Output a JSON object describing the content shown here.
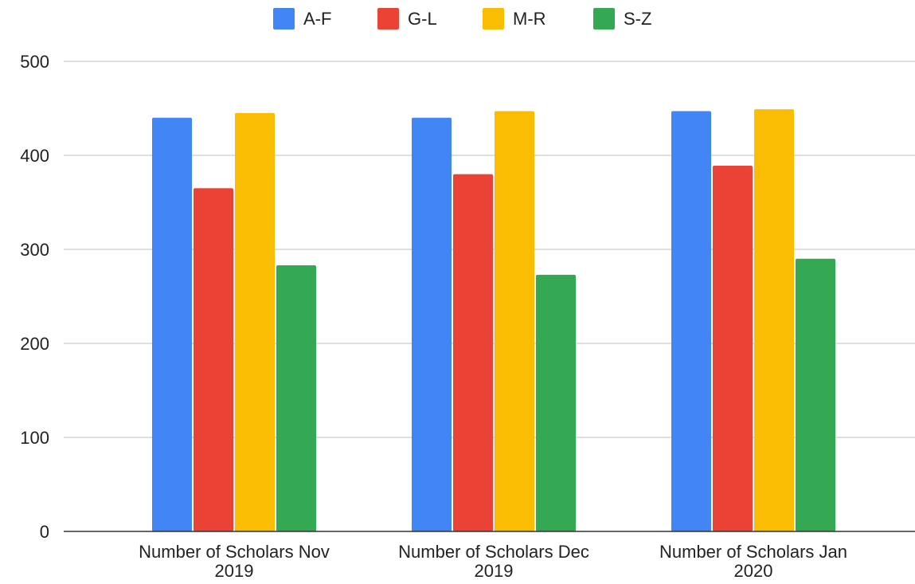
{
  "chart_data": {
    "type": "bar",
    "title": "",
    "xlabel": "",
    "ylabel": "",
    "categories": [
      [
        "Number of Scholars Nov",
        "2019"
      ],
      [
        "Number of Scholars Dec",
        "2019"
      ],
      [
        "Number of Scholars Jan",
        "2020"
      ]
    ],
    "series": [
      {
        "name": "A-F",
        "color": "#4285f4",
        "values": [
          440,
          440,
          447
        ]
      },
      {
        "name": "G-L",
        "color": "#ea4335",
        "values": [
          365,
          380,
          389
        ]
      },
      {
        "name": "M-R",
        "color": "#fbbc04",
        "values": [
          445,
          447,
          449
        ]
      },
      {
        "name": "S-Z",
        "color": "#34a853",
        "values": [
          283,
          273,
          290
        ]
      }
    ],
    "ylim": [
      0,
      500
    ],
    "yticks": [
      0,
      100,
      200,
      300,
      400,
      500
    ],
    "grid": true,
    "legend_position": "top-center",
    "gridline_color": "#cccccc",
    "axis_color": "#333333"
  }
}
